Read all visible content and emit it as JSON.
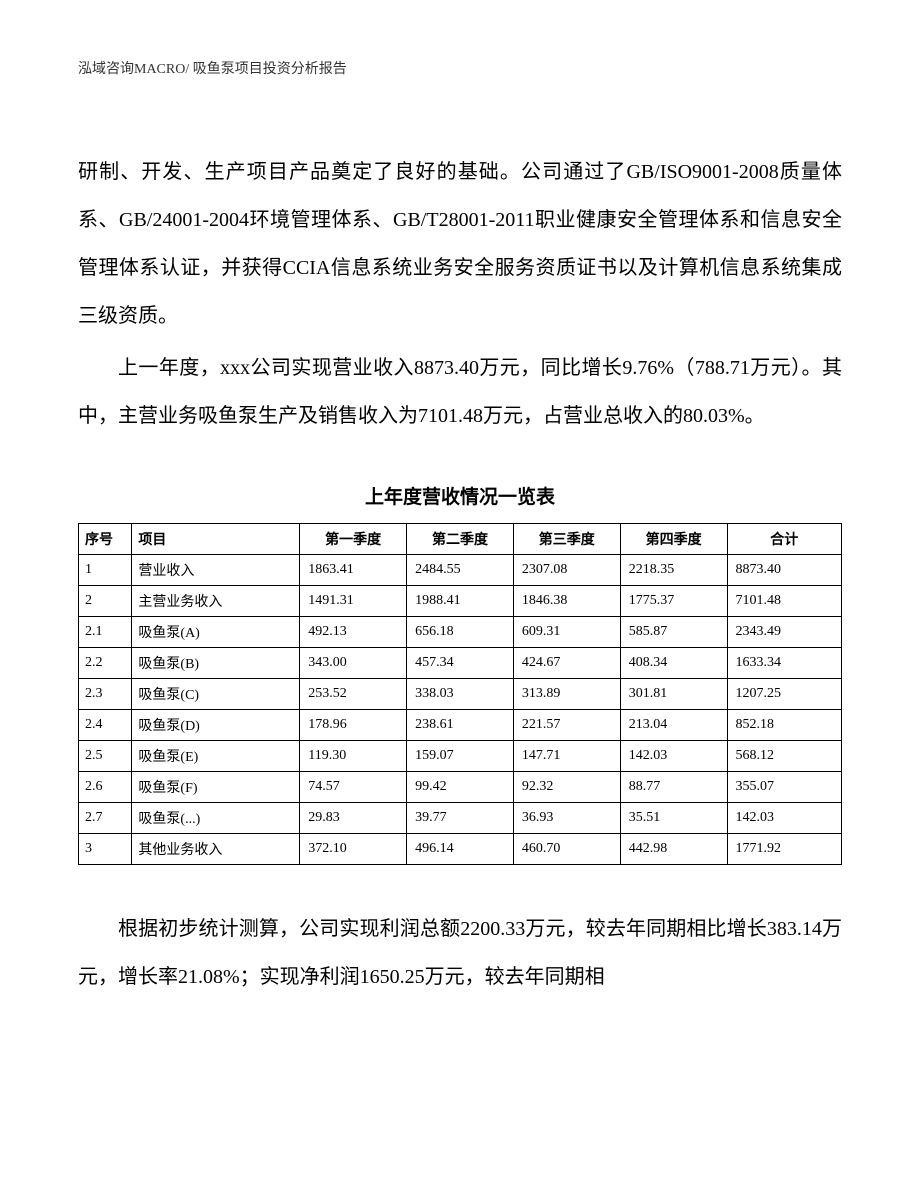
{
  "header": "泓域咨询MACRO/    吸鱼泵项目投资分析报告",
  "para1": "研制、开发、生产项目产品奠定了良好的基础。公司通过了GB/ISO9001-2008质量体系、GB/24001-2004环境管理体系、GB/T28001-2011职业健康安全管理体系和信息安全管理体系认证，并获得CCIA信息系统业务安全服务资质证书以及计算机信息系统集成三级资质。",
  "para2": "上一年度，xxx公司实现营业收入8873.40万元，同比增长9.76%（788.71万元）。其中，主营业务吸鱼泵生产及销售收入为7101.48万元，占营业总收入的80.03%。",
  "table_title": "上年度营收情况一览表",
  "table": {
    "type": "table",
    "columns": [
      "序号",
      "项目",
      "第一季度",
      "第二季度",
      "第三季度",
      "第四季度",
      "合计"
    ],
    "rows": [
      [
        "1",
        "营业收入",
        "1863.41",
        "2484.55",
        "2307.08",
        "2218.35",
        "8873.40"
      ],
      [
        "2",
        "主营业务收入",
        "1491.31",
        "1988.41",
        "1846.38",
        "1775.37",
        "7101.48"
      ],
      [
        "2.1",
        "吸鱼泵(A)",
        "492.13",
        "656.18",
        "609.31",
        "585.87",
        "2343.49"
      ],
      [
        "2.2",
        "吸鱼泵(B)",
        "343.00",
        "457.34",
        "424.67",
        "408.34",
        "1633.34"
      ],
      [
        "2.3",
        "吸鱼泵(C)",
        "253.52",
        "338.03",
        "313.89",
        "301.81",
        "1207.25"
      ],
      [
        "2.4",
        "吸鱼泵(D)",
        "178.96",
        "238.61",
        "221.57",
        "213.04",
        "852.18"
      ],
      [
        "2.5",
        "吸鱼泵(E)",
        "119.30",
        "159.07",
        "147.71",
        "142.03",
        "568.12"
      ],
      [
        "2.6",
        "吸鱼泵(F)",
        "74.57",
        "99.42",
        "92.32",
        "88.77",
        "355.07"
      ],
      [
        "2.7",
        "吸鱼泵(...)",
        "29.83",
        "39.77",
        "36.93",
        "35.51",
        "142.03"
      ],
      [
        "3",
        "其他业务收入",
        "372.10",
        "496.14",
        "460.70",
        "442.98",
        "1771.92"
      ]
    ],
    "border_color": "#000000",
    "header_fontsize": 14,
    "cell_fontsize": 14,
    "background_color": "#ffffff"
  },
  "para3": "根据初步统计测算，公司实现利润总额2200.33万元，较去年同期相比增长383.14万元，增长率21.08%；实现净利润1650.25万元，较去年同期相"
}
